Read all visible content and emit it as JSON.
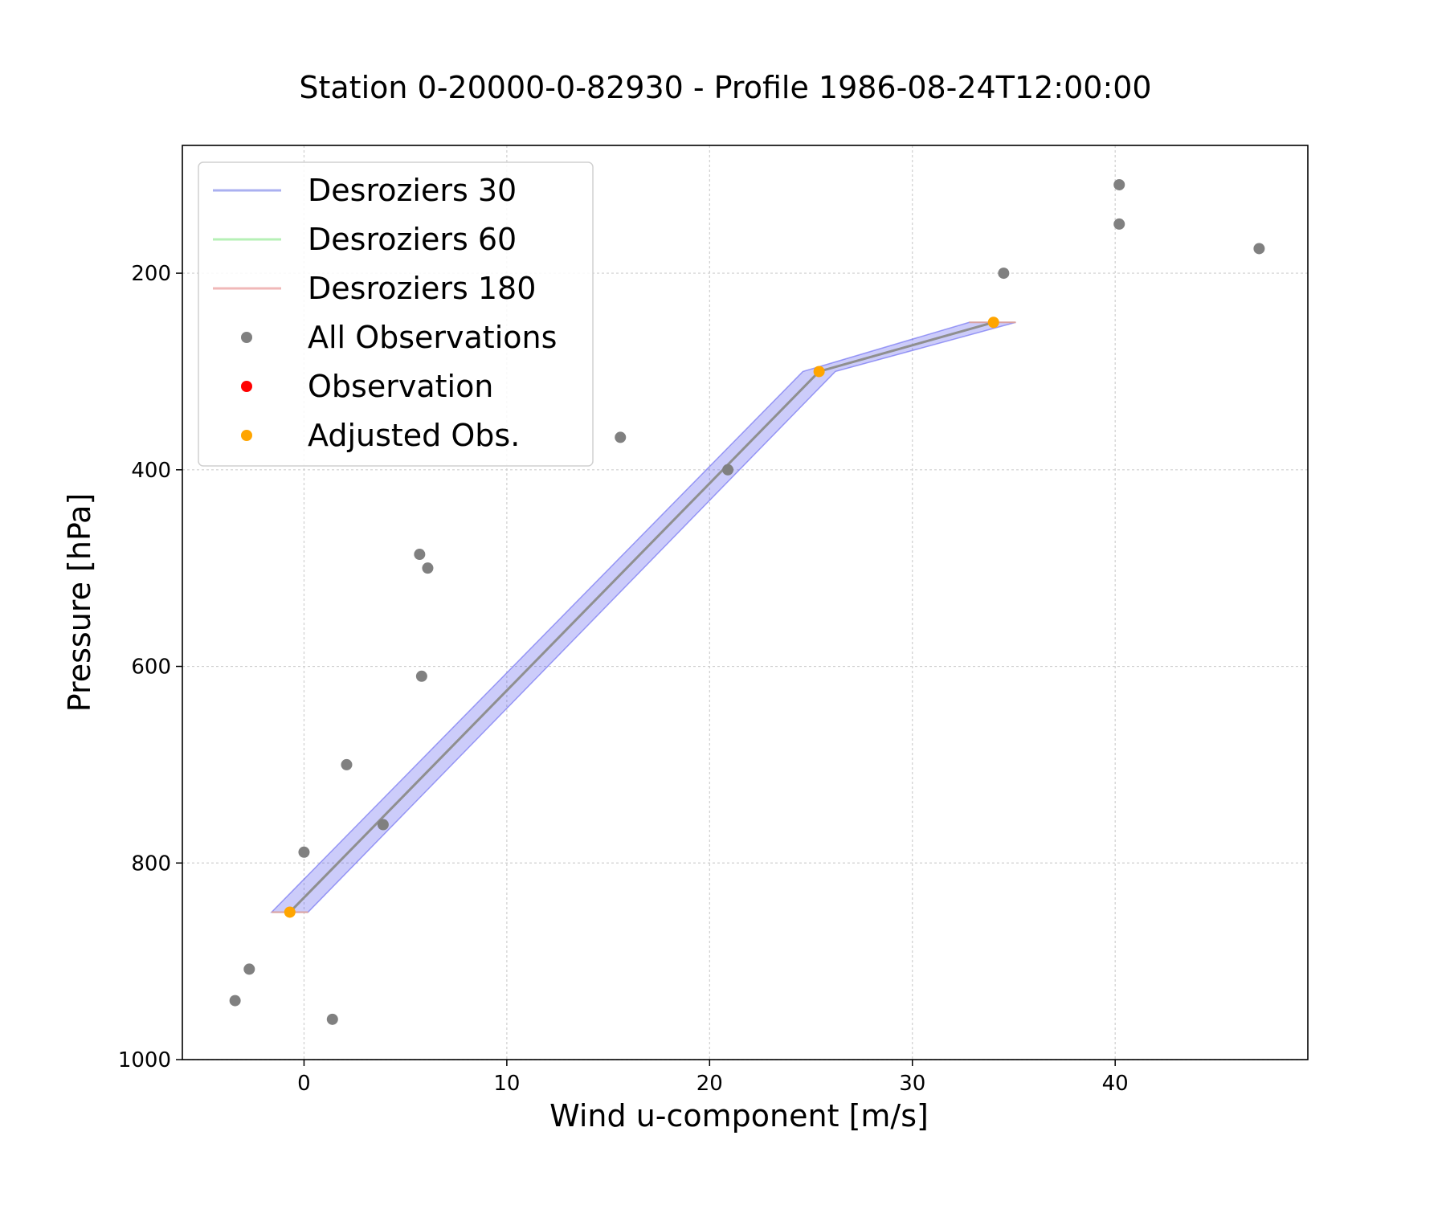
{
  "chart_data": {
    "type": "scatter",
    "title": "Station 0-20000-0-82930 - Profile 1986-08-24T12:00:00",
    "xlabel": "Wind u-component [m/s]",
    "ylabel": "Pressure [hPa]",
    "xlim": [
      -6,
      49.5
    ],
    "ylim": [
      1000,
      70
    ],
    "y_inverted": true,
    "grid": true,
    "legend_position": "top-left",
    "x_ticks": [
      0,
      10,
      20,
      30,
      40
    ],
    "y_ticks": [
      200,
      400,
      600,
      800,
      1000
    ],
    "legend": [
      {
        "label": "Desroziers 30",
        "kind": "line",
        "color": "#aab0f0"
      },
      {
        "label": "Desroziers 60",
        "kind": "line",
        "color": "#b6f0b6"
      },
      {
        "label": "Desroziers 180",
        "kind": "line",
        "color": "#f0b8b8"
      },
      {
        "label": "All Observations",
        "kind": "dot",
        "color": "#808080"
      },
      {
        "label": "Observation",
        "kind": "dot",
        "color": "#ff0000"
      },
      {
        "label": "Adjusted Obs.",
        "kind": "dot",
        "color": "#ffa500"
      }
    ],
    "band": {
      "name": "Desroziers 30",
      "color": "#5555ee",
      "points": [
        {
          "p": 850,
          "lo": -1.6,
          "hi": 0.2
        },
        {
          "p": 300,
          "lo": 24.6,
          "hi": 26.2
        },
        {
          "p": 250,
          "lo": 32.8,
          "hi": 35.1
        }
      ]
    },
    "adjusted_line": {
      "color": "#8f8f8f",
      "points": [
        {
          "x": -0.7,
          "y": 850
        },
        {
          "x": 25.4,
          "y": 300
        },
        {
          "x": 34.0,
          "y": 250
        }
      ]
    },
    "series": [
      {
        "name": "All Observations",
        "color": "#808080",
        "points": [
          {
            "x": 40.2,
            "y": 110
          },
          {
            "x": 40.2,
            "y": 150
          },
          {
            "x": 47.1,
            "y": 175
          },
          {
            "x": 34.5,
            "y": 200
          },
          {
            "x": 15.6,
            "y": 367
          },
          {
            "x": 20.9,
            "y": 400
          },
          {
            "x": 5.7,
            "y": 486
          },
          {
            "x": 6.1,
            "y": 500
          },
          {
            "x": 5.8,
            "y": 610
          },
          {
            "x": 2.1,
            "y": 700
          },
          {
            "x": 3.9,
            "y": 761
          },
          {
            "x": 0.0,
            "y": 789
          },
          {
            "x": -2.7,
            "y": 908
          },
          {
            "x": -3.4,
            "y": 940
          },
          {
            "x": 1.4,
            "y": 959
          }
        ]
      },
      {
        "name": "Observation",
        "color": "#ff0000",
        "points": []
      },
      {
        "name": "Adjusted Obs.",
        "color": "#ffa500",
        "points": [
          {
            "x": -0.7,
            "y": 850
          },
          {
            "x": 25.4,
            "y": 300
          },
          {
            "x": 34.0,
            "y": 250
          }
        ]
      }
    ]
  }
}
